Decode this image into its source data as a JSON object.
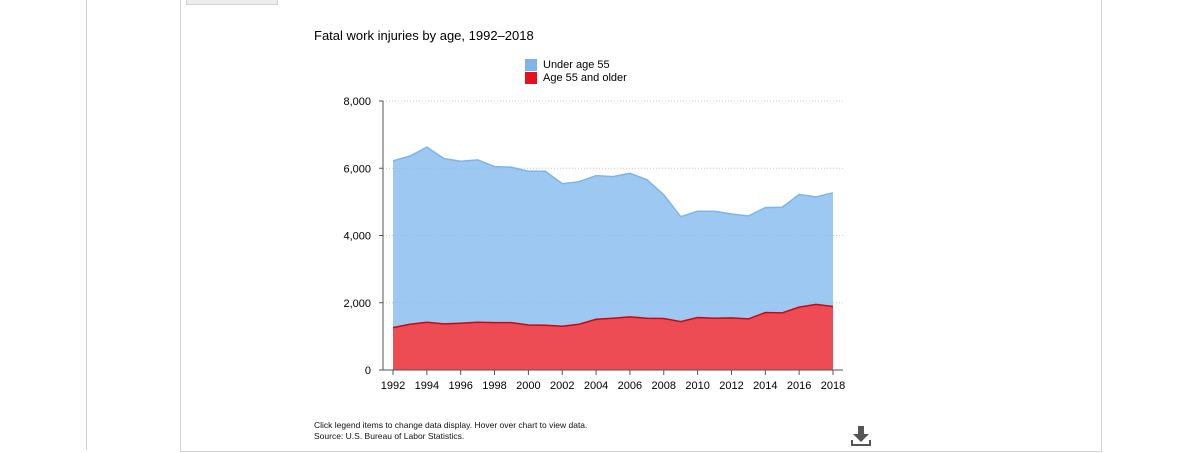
{
  "chart_data": {
    "type": "area",
    "title": "Fatal work injuries by age, 1992–2018",
    "xlabel": "",
    "ylabel": "",
    "x": [
      1992,
      1993,
      1994,
      1995,
      1996,
      1997,
      1998,
      1999,
      2000,
      2001,
      2002,
      2003,
      2004,
      2005,
      2006,
      2007,
      2008,
      2009,
      2010,
      2011,
      2012,
      2013,
      2014,
      2015,
      2016,
      2017,
      2018
    ],
    "x_tick_labels": [
      "1992",
      "1994",
      "1996",
      "1998",
      "2000",
      "2002",
      "2004",
      "2006",
      "2008",
      "2010",
      "2012",
      "2014",
      "2016",
      "2018"
    ],
    "y_tick_labels": [
      "0",
      "2,000",
      "4,000",
      "6,000",
      "8,000"
    ],
    "ylim": [
      0,
      8000
    ],
    "stacked": true,
    "grid": "horizontal dotted",
    "legend_position": "top",
    "series": [
      {
        "name": "Under age 55",
        "color": "#7cb5ec",
        "values": [
          4960,
          5000,
          5210,
          4920,
          4820,
          4830,
          4640,
          4620,
          4570,
          4580,
          4240,
          4240,
          4270,
          4210,
          4270,
          4120,
          3680,
          3120,
          3160,
          3180,
          3090,
          3060,
          3120,
          3140,
          3350,
          3200,
          3380
        ]
      },
      {
        "name": "Age 55 and older",
        "color": "#e8101c",
        "values": [
          1260,
          1360,
          1420,
          1370,
          1390,
          1420,
          1410,
          1410,
          1340,
          1330,
          1300,
          1360,
          1510,
          1540,
          1580,
          1540,
          1530,
          1440,
          1560,
          1540,
          1550,
          1520,
          1710,
          1700,
          1870,
          1950,
          1890
        ]
      }
    ]
  },
  "footnote": {
    "line1": "Click legend items to change data display. Hover over chart to view data.",
    "line2": "Source: U.S. Bureau of Labor Statistics."
  },
  "icons": {
    "download": "download-icon"
  }
}
